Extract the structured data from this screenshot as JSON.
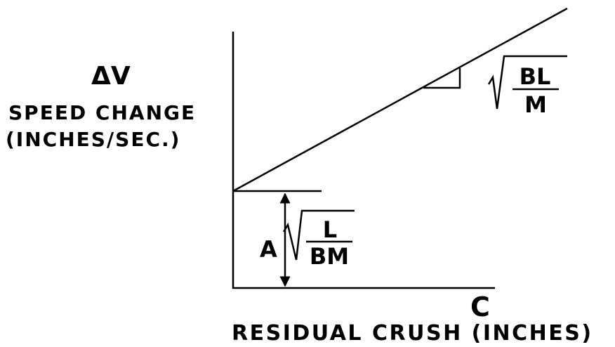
{
  "y_axis": {
    "symbol": "ΔV",
    "name": "SPEED CHANGE",
    "unit": "(INCHES/SEC.)"
  },
  "x_axis": {
    "symbol": "C",
    "name": "RESIDUAL CRUSH (INCHES)"
  },
  "intercept": {
    "label": "A",
    "numerator": "L",
    "denominator": "BM"
  },
  "slope": {
    "numerator": "BL",
    "denominator": "M"
  }
}
